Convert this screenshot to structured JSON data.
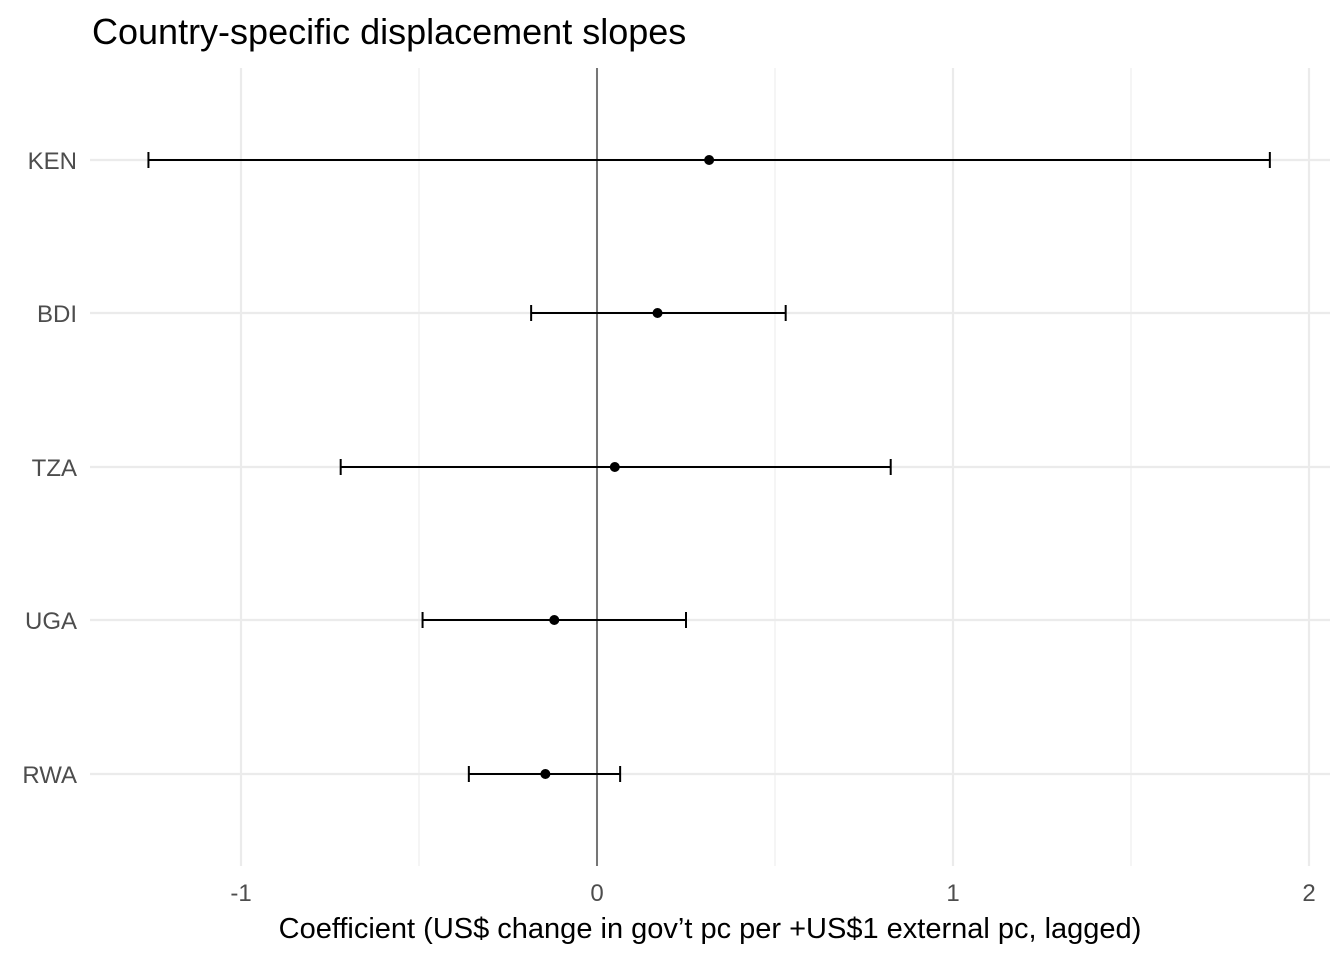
{
  "chart_data": {
    "type": "errorbar",
    "title": "Country-specific displacement slopes",
    "xlabel": "Coefficient (US$ change in gov’t pc per +US$1 external pc, lagged)",
    "ylabel": "",
    "xlim": [
      -1.45,
      2.05
    ],
    "x_ticks": [
      -1,
      0,
      1,
      2
    ],
    "x_tick_labels": [
      "-1",
      "0",
      "1",
      "2"
    ],
    "reference_line_x": 0,
    "grid": true,
    "legend": "none",
    "colors": {
      "marks": "#000000",
      "grid": "#ebebeb",
      "tick_text": "#4d4d4d"
    },
    "points": [
      {
        "category": "KEN",
        "estimate": 0.315,
        "lower": -1.26,
        "upper": 1.89
      },
      {
        "category": "BDI",
        "estimate": 0.17,
        "lower": -0.185,
        "upper": 0.53
      },
      {
        "category": "TZA",
        "estimate": 0.05,
        "lower": -0.72,
        "upper": 0.825
      },
      {
        "category": "UGA",
        "estimate": -0.12,
        "lower": -0.49,
        "upper": 0.25
      },
      {
        "category": "RWA",
        "estimate": -0.145,
        "lower": -0.36,
        "upper": 0.065
      }
    ]
  }
}
